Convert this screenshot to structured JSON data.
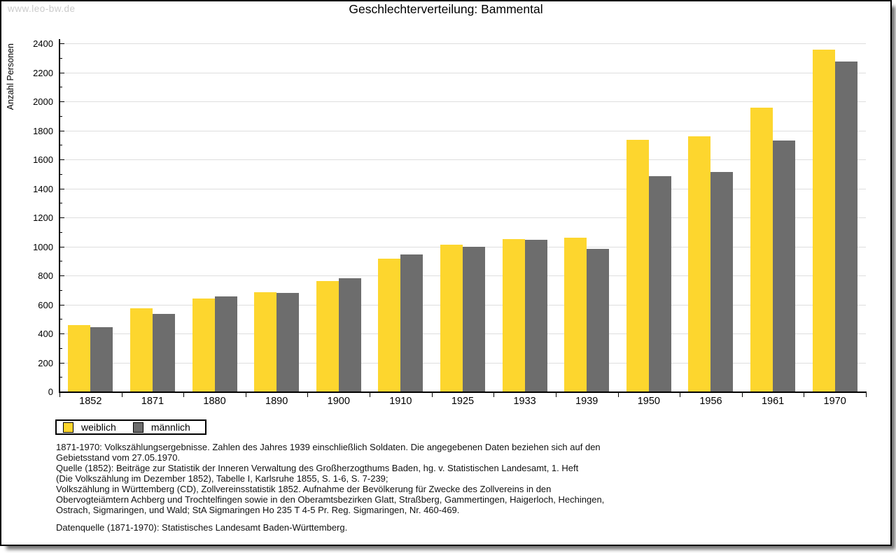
{
  "watermark": "www.leo-bw.de",
  "title": "Geschlechterverteilung: Bammental",
  "chart_data": {
    "type": "bar",
    "title": "Geschlechterverteilung: Bammental",
    "xlabel": "",
    "ylabel": "Anzahl Personen",
    "ylim": [
      0,
      2400
    ],
    "ytick_step": 200,
    "ytick_minor_step": 100,
    "grid": true,
    "legend_position": "bottom-left",
    "categories": [
      "1852",
      "1871",
      "1880",
      "1890",
      "1900",
      "1910",
      "1925",
      "1933",
      "1939",
      "1950",
      "1956",
      "1961",
      "1970"
    ],
    "series": [
      {
        "name": "weiblich",
        "color": "#fdd62e",
        "values": [
          460,
          575,
          640,
          685,
          760,
          915,
          1010,
          1050,
          1060,
          1735,
          1760,
          1955,
          2355
        ]
      },
      {
        "name": "männlich",
        "color": "#6d6d6d",
        "values": [
          445,
          535,
          655,
          680,
          780,
          945,
          1000,
          1045,
          985,
          1485,
          1515,
          1730,
          2275
        ]
      }
    ]
  },
  "footnotes": [
    "1871-1970: Volkszählungsergebnisse. Zahlen des Jahres 1939 einschließlich Soldaten. Die angegebenen Daten beziehen sich auf den",
    "Gebietsstand vom 27.05.1970.",
    "Quelle (1852): Beiträge zur Statistik der Inneren Verwaltung des Großherzogthums Baden, hg. v. Statistischen Landesamt, 1. Heft",
    "(Die Volkszählung im Dezember 1852), Tabelle I, Karlsruhe 1855, S. 1-6, S. 7-239;",
    "Volkszählung in Württemberg (CD), Zollvereinsstatistik 1852. Aufnahme der Bevölkerung für Zwecke des Zollvereins in den",
    "Obervogteiämtern Achberg und Trochtelfingen sowie in den Oberamtsbezirken Glatt, Straßberg, Gammertingen, Haigerloch, Hechingen,",
    "Ostrach, Sigmaringen, und Wald; StA Sigmaringen Ho 235 T 4-5 Pr. Reg. Sigmaringen, Nr. 460-469."
  ],
  "source_note": "Datenquelle (1871-1970): Statistisches Landesamt Baden-Württemberg."
}
